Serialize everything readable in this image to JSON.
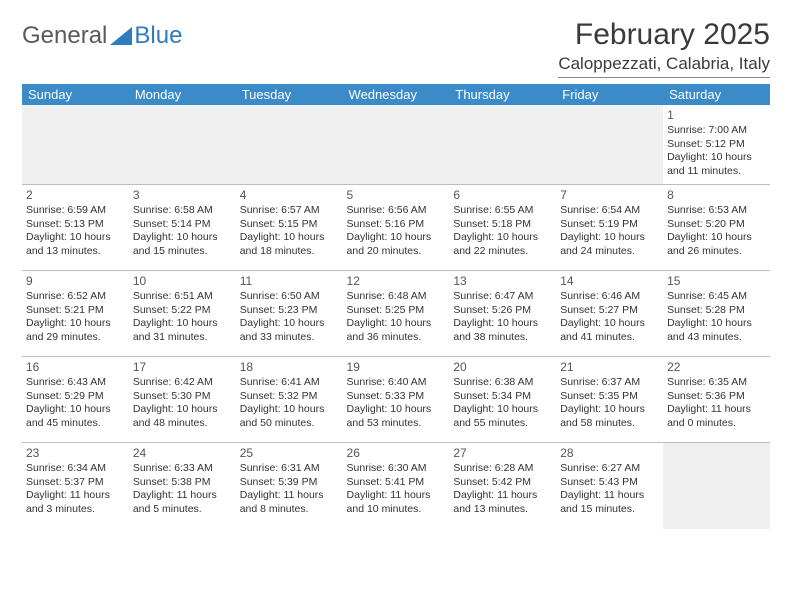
{
  "brand": {
    "part1": "General",
    "part2": "Blue"
  },
  "title": "February 2025",
  "location": "Caloppezzati, Calabria, Italy",
  "colors": {
    "header_bg": "#3b8bc8",
    "header_fg": "#ffffff",
    "logo_gray": "#5a5a5a",
    "logo_blue": "#2f7bbf",
    "text": "#333333",
    "rule": "#bdbdbd",
    "empty_bg": "#f0f0f0"
  },
  "dayNames": [
    "Sunday",
    "Monday",
    "Tuesday",
    "Wednesday",
    "Thursday",
    "Friday",
    "Saturday"
  ],
  "weeks": [
    [
      null,
      null,
      null,
      null,
      null,
      null,
      {
        "n": 1,
        "sr": "7:00 AM",
        "ss": "5:12 PM",
        "dl": "10 hours and 11 minutes."
      }
    ],
    [
      {
        "n": 2,
        "sr": "6:59 AM",
        "ss": "5:13 PM",
        "dl": "10 hours and 13 minutes."
      },
      {
        "n": 3,
        "sr": "6:58 AM",
        "ss": "5:14 PM",
        "dl": "10 hours and 15 minutes."
      },
      {
        "n": 4,
        "sr": "6:57 AM",
        "ss": "5:15 PM",
        "dl": "10 hours and 18 minutes."
      },
      {
        "n": 5,
        "sr": "6:56 AM",
        "ss": "5:16 PM",
        "dl": "10 hours and 20 minutes."
      },
      {
        "n": 6,
        "sr": "6:55 AM",
        "ss": "5:18 PM",
        "dl": "10 hours and 22 minutes."
      },
      {
        "n": 7,
        "sr": "6:54 AM",
        "ss": "5:19 PM",
        "dl": "10 hours and 24 minutes."
      },
      {
        "n": 8,
        "sr": "6:53 AM",
        "ss": "5:20 PM",
        "dl": "10 hours and 26 minutes."
      }
    ],
    [
      {
        "n": 9,
        "sr": "6:52 AM",
        "ss": "5:21 PM",
        "dl": "10 hours and 29 minutes."
      },
      {
        "n": 10,
        "sr": "6:51 AM",
        "ss": "5:22 PM",
        "dl": "10 hours and 31 minutes."
      },
      {
        "n": 11,
        "sr": "6:50 AM",
        "ss": "5:23 PM",
        "dl": "10 hours and 33 minutes."
      },
      {
        "n": 12,
        "sr": "6:48 AM",
        "ss": "5:25 PM",
        "dl": "10 hours and 36 minutes."
      },
      {
        "n": 13,
        "sr": "6:47 AM",
        "ss": "5:26 PM",
        "dl": "10 hours and 38 minutes."
      },
      {
        "n": 14,
        "sr": "6:46 AM",
        "ss": "5:27 PM",
        "dl": "10 hours and 41 minutes."
      },
      {
        "n": 15,
        "sr": "6:45 AM",
        "ss": "5:28 PM",
        "dl": "10 hours and 43 minutes."
      }
    ],
    [
      {
        "n": 16,
        "sr": "6:43 AM",
        "ss": "5:29 PM",
        "dl": "10 hours and 45 minutes."
      },
      {
        "n": 17,
        "sr": "6:42 AM",
        "ss": "5:30 PM",
        "dl": "10 hours and 48 minutes."
      },
      {
        "n": 18,
        "sr": "6:41 AM",
        "ss": "5:32 PM",
        "dl": "10 hours and 50 minutes."
      },
      {
        "n": 19,
        "sr": "6:40 AM",
        "ss": "5:33 PM",
        "dl": "10 hours and 53 minutes."
      },
      {
        "n": 20,
        "sr": "6:38 AM",
        "ss": "5:34 PM",
        "dl": "10 hours and 55 minutes."
      },
      {
        "n": 21,
        "sr": "6:37 AM",
        "ss": "5:35 PM",
        "dl": "10 hours and 58 minutes."
      },
      {
        "n": 22,
        "sr": "6:35 AM",
        "ss": "5:36 PM",
        "dl": "11 hours and 0 minutes."
      }
    ],
    [
      {
        "n": 23,
        "sr": "6:34 AM",
        "ss": "5:37 PM",
        "dl": "11 hours and 3 minutes."
      },
      {
        "n": 24,
        "sr": "6:33 AM",
        "ss": "5:38 PM",
        "dl": "11 hours and 5 minutes."
      },
      {
        "n": 25,
        "sr": "6:31 AM",
        "ss": "5:39 PM",
        "dl": "11 hours and 8 minutes."
      },
      {
        "n": 26,
        "sr": "6:30 AM",
        "ss": "5:41 PM",
        "dl": "11 hours and 10 minutes."
      },
      {
        "n": 27,
        "sr": "6:28 AM",
        "ss": "5:42 PM",
        "dl": "11 hours and 13 minutes."
      },
      {
        "n": 28,
        "sr": "6:27 AM",
        "ss": "5:43 PM",
        "dl": "11 hours and 15 minutes."
      },
      null
    ]
  ],
  "labels": {
    "sunrise": "Sunrise:",
    "sunset": "Sunset:",
    "daylight": "Daylight:"
  }
}
